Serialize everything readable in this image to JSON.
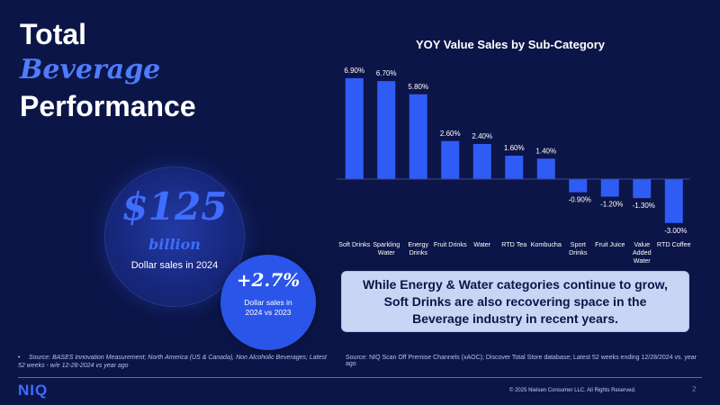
{
  "title": {
    "line1": "Total",
    "line2": "Beverage",
    "line3": "Performance"
  },
  "kpi": {
    "sales_value": "$125",
    "sales_unit": "billion",
    "sales_caption": "Dollar sales in 2024",
    "growth_value": "+2.7%",
    "growth_caption_line1": "Dollar sales in",
    "growth_caption_line2": "2024 vs 2023"
  },
  "chart_data": {
    "type": "bar",
    "title": "YOY Value Sales by Sub-Category",
    "categories": [
      "Soft Drinks",
      "Sparkling Water",
      "Energy Drinks",
      "Fruit Drinks",
      "Water",
      "RTD Tea",
      "Kombucha",
      "Sport Drinks",
      "Fruit Juice",
      "Value Added Water",
      "RTD Coffee"
    ],
    "category_lines": [
      [
        "Soft Drinks"
      ],
      [
        "Sparkling",
        "Water"
      ],
      [
        "Energy",
        "Drinks"
      ],
      [
        "Fruit Drinks"
      ],
      [
        "Water"
      ],
      [
        "RTD Tea"
      ],
      [
        "Kombucha"
      ],
      [
        "Sport",
        "Drinks"
      ],
      [
        "Fruit Juice"
      ],
      [
        "Value",
        "Added",
        "Water"
      ],
      [
        "RTD Coffee"
      ]
    ],
    "values": [
      6.9,
      6.7,
      5.8,
      2.6,
      2.4,
      1.6,
      1.4,
      -0.9,
      -1.2,
      -1.3,
      -3.0
    ],
    "data_labels": [
      "6.90%",
      "6.70%",
      "5.80%",
      "2.60%",
      "2.40%",
      "1.60%",
      "1.40%",
      "-0.90%",
      "-1.20%",
      "-1.30%",
      "-3.00%"
    ],
    "xlabel": "",
    "ylabel": "",
    "grid": false,
    "bar_color": "#2f5cf5"
  },
  "callout": {
    "line1": "While Energy & Water categories continue to grow,",
    "line2": "Soft Drinks are also recovering space in the",
    "line3": "Beverage industry in recent years."
  },
  "footer": {
    "bullet": "•",
    "source_left": "Source: BASES Innovation Measurement; North America (US & Canada), Non Alcoholic Beverages; Latest 52 weeks - w/e 12-28-2024  vs year ago",
    "source_right": "Source: NIQ Scan Off Premise Channels (xAOC); Discover Total Store database; Latest 52 weeks ending 12/28/2024 vs. year ago",
    "logo": "NIQ",
    "copyright": "© 2025 Nielsen Consumer LLC. All Rights Reserved.",
    "page_number": "2"
  },
  "colors": {
    "background": "#0c1547",
    "accent": "#3f6dff",
    "bar": "#2f5cf5",
    "callout_bg": "#c8d5f5"
  }
}
